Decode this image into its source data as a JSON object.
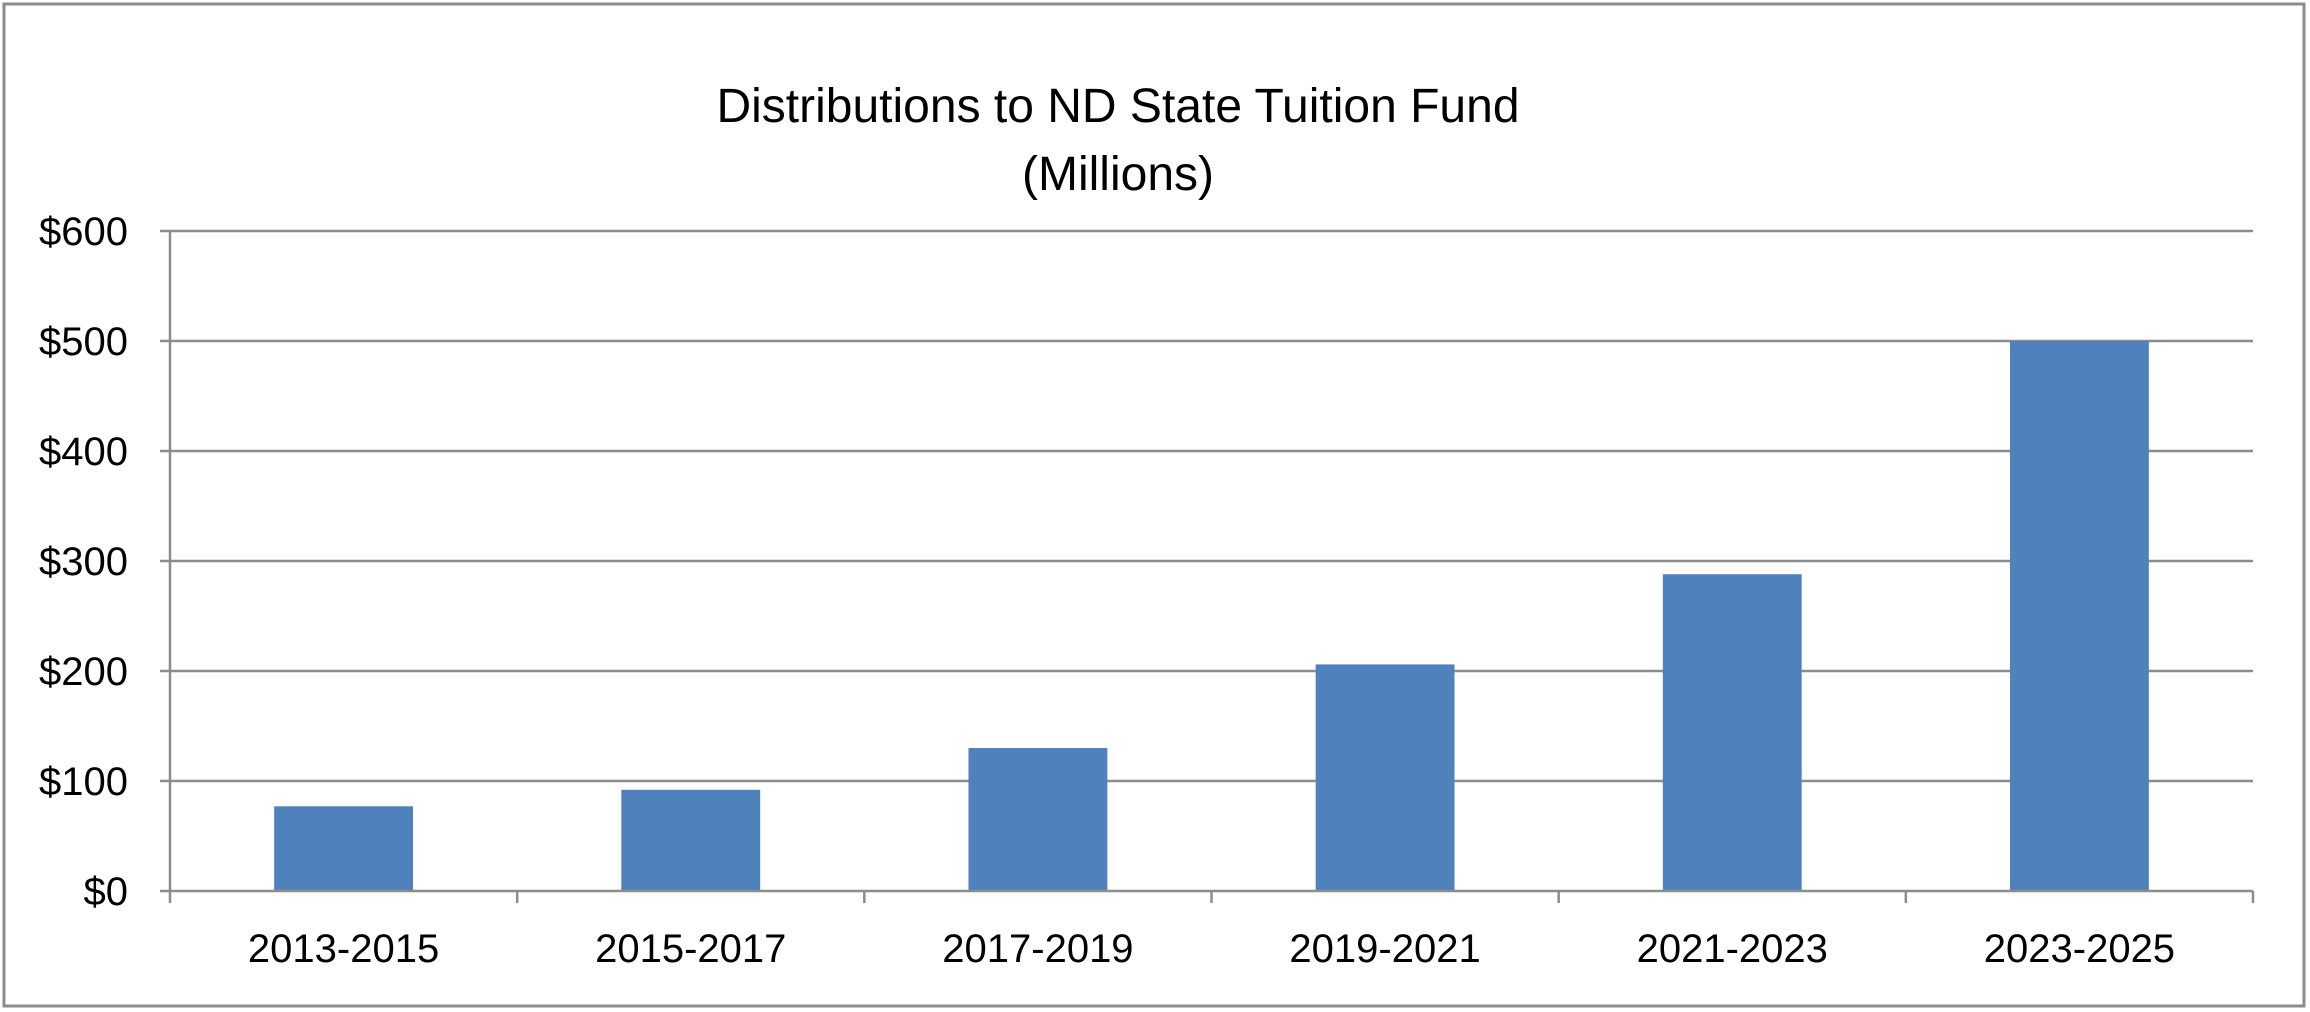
{
  "chart_data": {
    "type": "bar",
    "title": "Distributions to ND State Tuition Fund",
    "subtitle": "(Millions)",
    "xlabel": "",
    "ylabel": "",
    "categories": [
      "2013-2015",
      "2015-2017",
      "2017-2019",
      "2019-2021",
      "2021-2023",
      "2023-2025"
    ],
    "values": [
      77,
      92,
      130,
      206,
      288,
      500
    ],
    "ylim": [
      0,
      600
    ],
    "y_ticks": [
      0,
      100,
      200,
      300,
      400,
      500,
      600
    ],
    "y_tick_labels": [
      "$0",
      "$100",
      "$200",
      "$300",
      "$400",
      "$500",
      "$600"
    ],
    "grid": true,
    "legend": "none",
    "bar_color": "#4F81BD",
    "grid_color": "#8C8C8C",
    "border_color": "#8C8C8C"
  }
}
